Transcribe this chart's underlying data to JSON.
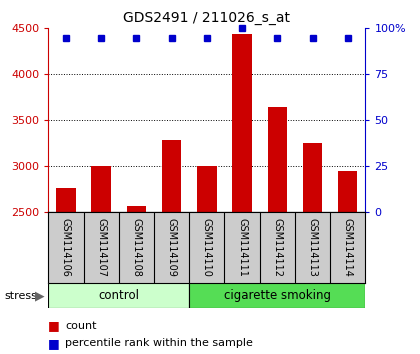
{
  "title": "GDS2491 / 211026_s_at",
  "samples": [
    "GSM114106",
    "GSM114107",
    "GSM114108",
    "GSM114109",
    "GSM114110",
    "GSM114111",
    "GSM114112",
    "GSM114113",
    "GSM114114"
  ],
  "counts": [
    2760,
    3000,
    2570,
    3290,
    3000,
    4440,
    3650,
    3250,
    2950
  ],
  "percentiles": [
    95,
    95,
    95,
    95,
    95,
    100,
    95,
    95,
    95
  ],
  "ylim_left": [
    2500,
    4500
  ],
  "ylim_right": [
    0,
    100
  ],
  "yticks_left": [
    2500,
    3000,
    3500,
    4000,
    4500
  ],
  "yticks_right": [
    0,
    25,
    50,
    75,
    100
  ],
  "bar_color": "#cc0000",
  "dot_color": "#0000cc",
  "control_color": "#ccffcc",
  "smoking_color": "#55dd55",
  "tick_area_color": "#cccccc",
  "n_control": 4,
  "n_smoking": 5,
  "stress_label": "stress",
  "group1_label": "control",
  "group2_label": "cigarette smoking",
  "legend_count": "count",
  "legend_pct": "percentile rank within the sample"
}
